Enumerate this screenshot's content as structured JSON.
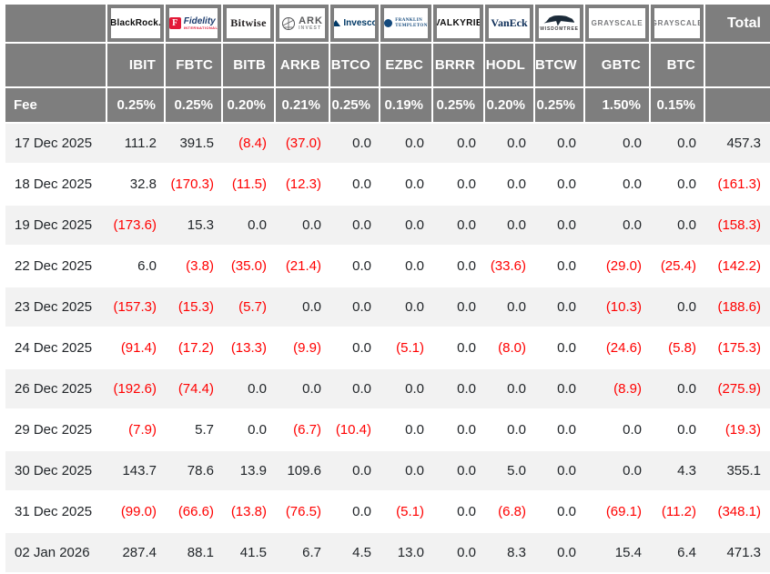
{
  "colors": {
    "header_bg": "#7e7e7e",
    "row_stripe": "#f2f2f2",
    "negative_text": "#ff0000",
    "positive_text": "#212529",
    "fidelity_red": "#e31837",
    "invesco_blue": "#003865"
  },
  "chart_data": {
    "type": "table",
    "fee_label": "Fee",
    "total_label": "Total",
    "columns": [
      {
        "provider": "BlackRock",
        "logo_kind": "blackrock",
        "logo": {
          "text": "BlackRock."
        },
        "ticker": "IBIT",
        "fee": "0.25%"
      },
      {
        "provider": "Fidelity",
        "logo_kind": "fidelity",
        "logo": {
          "letter": "F",
          "text": "Fidelity",
          "sub": "INTERNATIONAL"
        },
        "ticker": "FBTC",
        "fee": "0.25%"
      },
      {
        "provider": "Bitwise",
        "logo_kind": "bitwise",
        "logo": {
          "text": "Bitwise"
        },
        "ticker": "BITB",
        "fee": "0.20%"
      },
      {
        "provider": "ARK Invest",
        "logo_kind": "ark",
        "logo": {
          "text": "ARK",
          "sub": "INVEST"
        },
        "ticker": "ARKB",
        "fee": "0.21%"
      },
      {
        "provider": "Invesco",
        "logo_kind": "invesco",
        "logo": {
          "text": "Invesco"
        },
        "ticker": "BTCO",
        "fee": "0.25%"
      },
      {
        "provider": "Franklin Templeton",
        "logo_kind": "franklin",
        "logo": {
          "line1": "FRANKLIN",
          "line2": "TEMPLETON"
        },
        "ticker": "EZBC",
        "fee": "0.19%"
      },
      {
        "provider": "Valkyrie",
        "logo_kind": "valkyrie",
        "logo": {
          "text": "VALKYRIE"
        },
        "ticker": "BRRR",
        "fee": "0.25%"
      },
      {
        "provider": "VanEck",
        "logo_kind": "vaneck",
        "logo": {
          "text": "VanEck"
        },
        "ticker": "HODL",
        "fee": "0.20%"
      },
      {
        "provider": "WisdomTree",
        "logo_kind": "wisdomtree",
        "logo": {
          "sub": "WISDOMTREE"
        },
        "ticker": "BTCW",
        "fee": "0.25%"
      },
      {
        "provider": "Grayscale",
        "logo_kind": "grayscale",
        "logo": {
          "text": "GRAYSCALE"
        },
        "ticker": "GBTC",
        "fee": "1.50%"
      },
      {
        "provider": "Grayscale",
        "logo_kind": "grayscale",
        "logo": {
          "text": "GRAYSCALE"
        },
        "ticker": "BTC",
        "fee": "0.15%"
      }
    ],
    "rows": [
      {
        "date": "17 Dec 2025",
        "values": [
          "111.2",
          "391.5",
          "(8.4)",
          "(37.0)",
          "0.0",
          "0.0",
          "0.0",
          "0.0",
          "0.0",
          "0.0",
          "0.0"
        ],
        "total": "457.3"
      },
      {
        "date": "18 Dec 2025",
        "values": [
          "32.8",
          "(170.3)",
          "(11.5)",
          "(12.3)",
          "0.0",
          "0.0",
          "0.0",
          "0.0",
          "0.0",
          "0.0",
          "0.0"
        ],
        "total": "(161.3)"
      },
      {
        "date": "19 Dec 2025",
        "values": [
          "(173.6)",
          "15.3",
          "0.0",
          "0.0",
          "0.0",
          "0.0",
          "0.0",
          "0.0",
          "0.0",
          "0.0",
          "0.0"
        ],
        "total": "(158.3)"
      },
      {
        "date": "22 Dec 2025",
        "values": [
          "6.0",
          "(3.8)",
          "(35.0)",
          "(21.4)",
          "0.0",
          "0.0",
          "0.0",
          "(33.6)",
          "0.0",
          "(29.0)",
          "(25.4)"
        ],
        "total": "(142.2)"
      },
      {
        "date": "23 Dec 2025",
        "values": [
          "(157.3)",
          "(15.3)",
          "(5.7)",
          "0.0",
          "0.0",
          "0.0",
          "0.0",
          "0.0",
          "0.0",
          "(10.3)",
          "0.0"
        ],
        "total": "(188.6)"
      },
      {
        "date": "24 Dec 2025",
        "values": [
          "(91.4)",
          "(17.2)",
          "(13.3)",
          "(9.9)",
          "0.0",
          "(5.1)",
          "0.0",
          "(8.0)",
          "0.0",
          "(24.6)",
          "(5.8)"
        ],
        "total": "(175.3)"
      },
      {
        "date": "26 Dec 2025",
        "values": [
          "(192.6)",
          "(74.4)",
          "0.0",
          "0.0",
          "0.0",
          "0.0",
          "0.0",
          "0.0",
          "0.0",
          "(8.9)",
          "0.0"
        ],
        "total": "(275.9)"
      },
      {
        "date": "29 Dec 2025",
        "values": [
          "(7.9)",
          "5.7",
          "0.0",
          "(6.7)",
          "(10.4)",
          "0.0",
          "0.0",
          "0.0",
          "0.0",
          "0.0",
          "0.0"
        ],
        "total": "(19.3)"
      },
      {
        "date": "30 Dec 2025",
        "values": [
          "143.7",
          "78.6",
          "13.9",
          "109.6",
          "0.0",
          "0.0",
          "0.0",
          "5.0",
          "0.0",
          "0.0",
          "4.3"
        ],
        "total": "355.1"
      },
      {
        "date": "31 Dec 2025",
        "values": [
          "(99.0)",
          "(66.6)",
          "(13.8)",
          "(76.5)",
          "0.0",
          "(5.1)",
          "0.0",
          "(6.8)",
          "0.0",
          "(69.1)",
          "(11.2)"
        ],
        "total": "(348.1)"
      },
      {
        "date": "02 Jan 2026",
        "values": [
          "287.4",
          "88.1",
          "41.5",
          "6.7",
          "4.5",
          "13.0",
          "0.0",
          "8.3",
          "0.0",
          "15.4",
          "6.4"
        ],
        "total": "471.3"
      }
    ]
  }
}
